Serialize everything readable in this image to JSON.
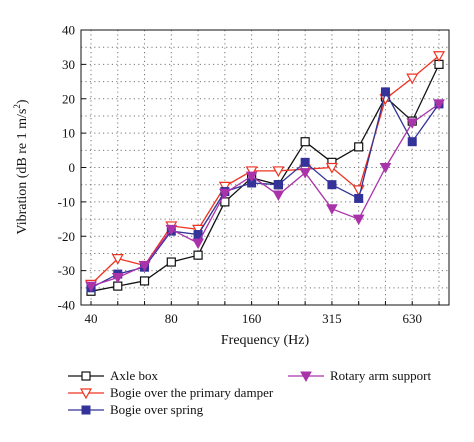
{
  "chart_data": {
    "type": "line",
    "xlabel": "Frequency (Hz)",
    "ylabel_prefix": "Vibration (dB re 1 m/s",
    "ylabel_sup": "2",
    "ylabel_suffix": ")",
    "ylim": [
      -40,
      40
    ],
    "yticks": [
      -40,
      -30,
      -20,
      -10,
      0,
      10,
      20,
      30,
      40
    ],
    "x_tick_labels": [
      "40",
      "80",
      "160",
      "315",
      "630"
    ],
    "x_tick_bands": [
      0,
      3,
      6,
      9,
      12
    ],
    "bands": [
      "40",
      "50",
      "63",
      "80",
      "100",
      "125",
      "160",
      "200",
      "250",
      "315",
      "400",
      "500",
      "630",
      "800"
    ],
    "grid": true,
    "legend_position": "bottom",
    "series": [
      {
        "name": "Axle box",
        "color": "#111111",
        "marker": "square-open",
        "values": [
          -36,
          -34.5,
          -33,
          -27.5,
          -25.5,
          -10,
          -3,
          -5,
          7.5,
          1.5,
          6,
          20.5,
          13.5,
          30
        ]
      },
      {
        "name": "Bogie over the primary damper",
        "color": "#ee3322",
        "marker": "triangle-down-open",
        "values": [
          -34,
          -26.5,
          -28.5,
          -17,
          -18,
          -5.5,
          -1,
          -1,
          -0.5,
          0,
          -6.5,
          20,
          26,
          32.5
        ]
      },
      {
        "name": "Bogie over spring",
        "color": "#333399",
        "marker": "square-filled",
        "values": [
          -35,
          -31,
          -29,
          -18.5,
          -19.5,
          -7,
          -4.5,
          -5,
          1.5,
          -5,
          -9,
          22,
          7.5,
          18.5
        ]
      },
      {
        "name": "Rotary arm support",
        "color": "#aa33aa",
        "marker": "triangle-down-filled",
        "values": [
          -34.5,
          -32,
          -28.5,
          -18,
          -22,
          -7.5,
          -2.5,
          -8,
          -1.5,
          -12,
          -15,
          0,
          13,
          18.5
        ]
      }
    ]
  }
}
